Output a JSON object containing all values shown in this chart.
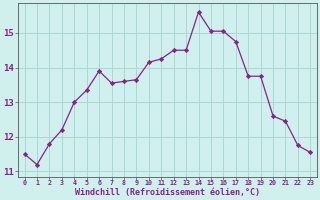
{
  "x": [
    0,
    1,
    2,
    3,
    4,
    5,
    6,
    7,
    8,
    9,
    10,
    11,
    12,
    13,
    14,
    15,
    16,
    17,
    18,
    19,
    20,
    21,
    22,
    23
  ],
  "y": [
    11.5,
    11.2,
    11.8,
    12.2,
    13.0,
    13.35,
    13.9,
    13.55,
    13.6,
    13.65,
    14.15,
    14.25,
    14.5,
    14.5,
    15.6,
    15.05,
    15.05,
    14.75,
    13.75,
    13.75,
    12.6,
    12.45,
    11.75,
    11.55
  ],
  "line_color": "#882288",
  "marker": "D",
  "marker_size": 2.2,
  "bg_color": "#d0f0ee",
  "grid_color": "#aad8d4",
  "xlabel": "Windchill (Refroidissement éolien,°C)",
  "xlabel_color": "#882288",
  "tick_color": "#882288",
  "axis_color": "#555555",
  "ylim": [
    10.85,
    15.85
  ],
  "xlim": [
    -0.5,
    23.5
  ],
  "yticks": [
    11,
    12,
    13,
    14,
    15
  ],
  "xticks": [
    0,
    1,
    2,
    3,
    4,
    5,
    6,
    7,
    8,
    9,
    10,
    11,
    12,
    13,
    14,
    15,
    16,
    17,
    18,
    19,
    20,
    21,
    22,
    23
  ],
  "xtick_labels": [
    "0",
    "1",
    "2",
    "3",
    "4",
    "5",
    "6",
    "7",
    "8",
    "9",
    "10",
    "11",
    "12",
    "13",
    "14",
    "15",
    "16",
    "17",
    "18",
    "19",
    "20",
    "21",
    "22",
    "23"
  ],
  "ytick_labels": [
    "11",
    "12",
    "13",
    "14",
    "15"
  ],
  "xlabel_fontsize": 6.0,
  "xtick_fontsize": 4.8,
  "ytick_fontsize": 6.5
}
